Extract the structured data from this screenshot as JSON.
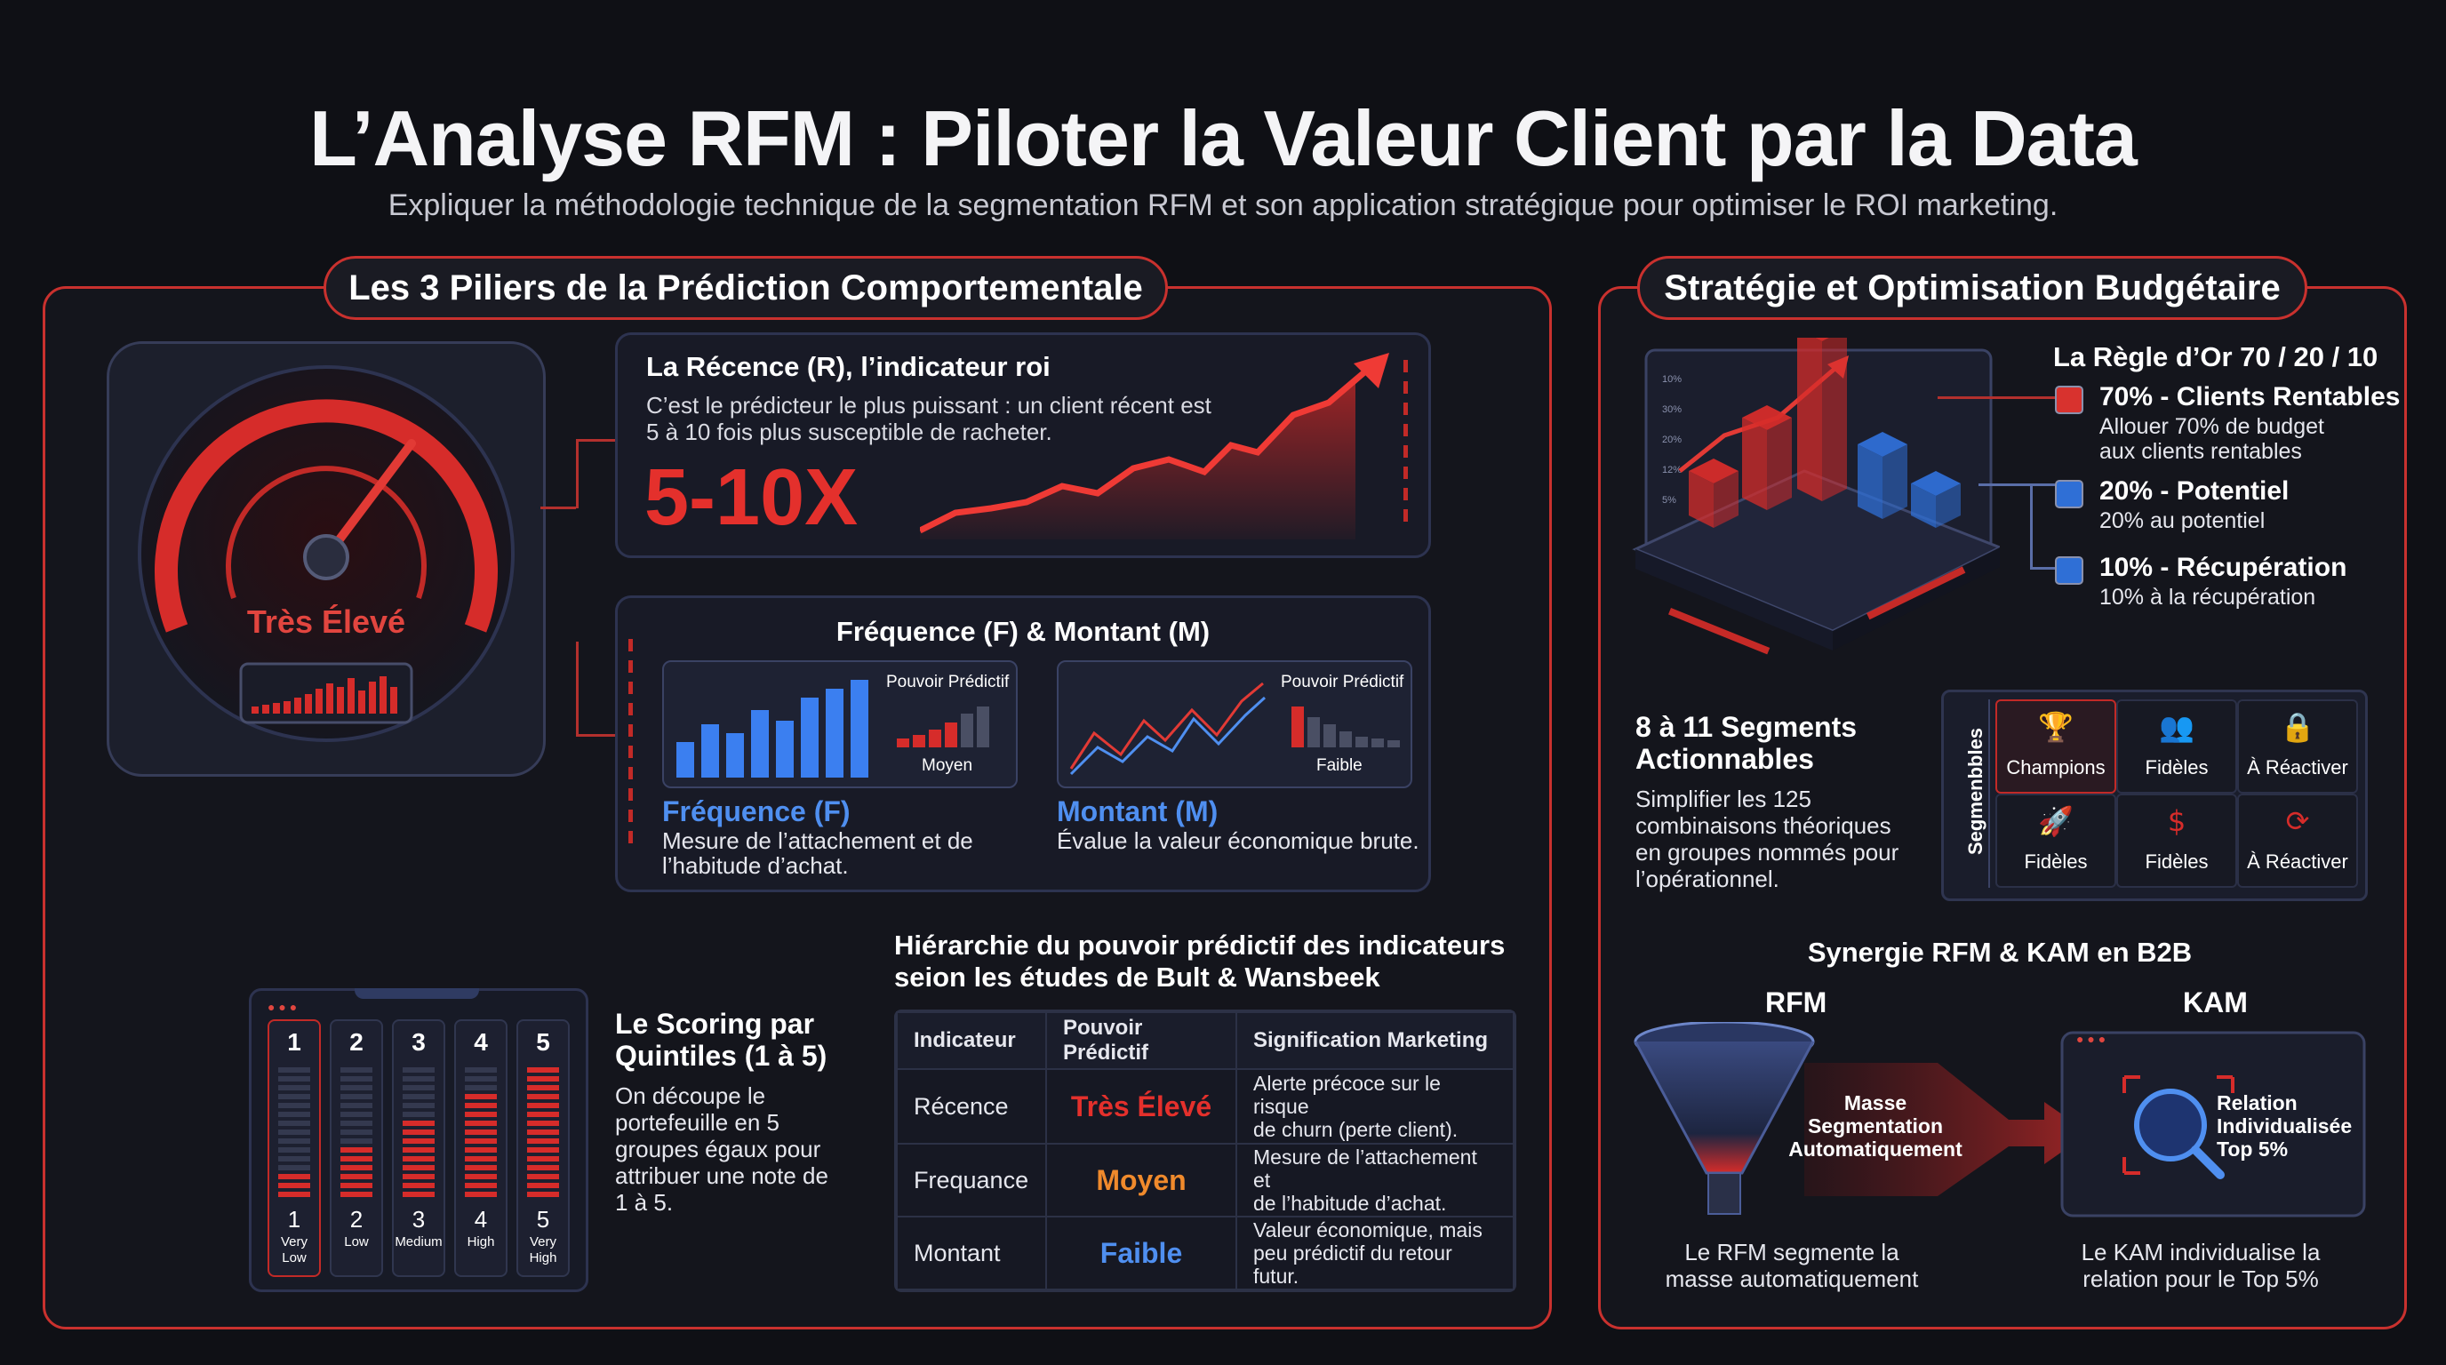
{
  "header": {
    "title": "L’Analyse RFM : Piloter la Valeur Client par la Data",
    "subtitle": "Expliquer la méthodologie technique de la segmentation RFM et son application stratégique pour optimiser le ROI marketing."
  },
  "left": {
    "section_title": "Les 3 Piliers de la Prédiction Comportementale",
    "gauge_label": "Très Élevé",
    "recency": {
      "title": "La Récence (R), l’indicateur roi",
      "text_line1": "C’est le prédicteur le plus puissant : un client récent est",
      "text_line2": "5 à 10 fois plus susceptible de racheter.",
      "big_value": "5-10X"
    },
    "fm": {
      "title": "Fréquence (F) & Montant (M)",
      "f_badge": "Pouvoir Prédictif",
      "f_badge_value": "Moyen",
      "m_badge": "Pouvoir Prédictif",
      "m_badge_value": "Faible",
      "f_title": "Fréquence (F)",
      "f_desc_line1": "Mesure de l’attachement et de",
      "f_desc_line2": "l’habitude d’achat.",
      "m_title": "Montant (M)",
      "m_desc": "Évalue la valeur économique brute."
    },
    "scoring": {
      "title_line1": "Le Scoring par",
      "title_line2": "Quintiles (1 à 5)",
      "desc_lines": [
        "On découpe le",
        "portefeuille en 5",
        "groupes égaux pour",
        "attribuer une note de",
        "1 à 5."
      ],
      "columns": [
        {
          "top": "1",
          "num": "1",
          "label_line1": "Very",
          "label_line2": "Low",
          "level": 0.2
        },
        {
          "top": "2",
          "num": "2",
          "label_line1": "Low",
          "label_line2": "",
          "level": 0.4
        },
        {
          "top": "3",
          "num": "3",
          "label_line1": "Medium",
          "label_line2": "",
          "level": 0.6
        },
        {
          "top": "4",
          "num": "4",
          "label_line1": "High",
          "label_line2": "",
          "level": 0.8
        },
        {
          "top": "5",
          "num": "5",
          "label_line1": "Very",
          "label_line2": "High",
          "level": 1.0
        }
      ]
    },
    "hierarchy": {
      "title_line1": "Hiérarchie du pouvoir prédictif des indicateurs",
      "title_line2": "seion les études de Bult & Wansbeek",
      "headers": [
        "Indicateur",
        "Pouvoir Prédictif",
        "Signification Marketing"
      ],
      "rows": [
        {
          "indicator": "Récence",
          "power": "Très Élevé",
          "meaning_line1": "Alerte précoce sur le risque",
          "meaning_line2": "de churn (perte client)."
        },
        {
          "indicator": "Frequance",
          "power": "Moyen",
          "meaning_line1": "Mesure de l’attachement et",
          "meaning_line2": "de l’habitude d’achat."
        },
        {
          "indicator": "Montant",
          "power": "Faible",
          "meaning_line1": "Valeur économique, mais",
          "meaning_line2": "peu prédictif du retour futur."
        }
      ]
    }
  },
  "right": {
    "section_title": "Stratégie et Optimisation Budgétaire",
    "rule_title": "La Règle d’Or 70 / 20 / 10",
    "chart_ticks": [
      "10%",
      "30%",
      "20%",
      "12%",
      "5%"
    ],
    "rules": [
      {
        "title": "70% - Clients Rentables",
        "line1": "Allouer 70% de budget",
        "line2": "aux clients rentables",
        "color": "#d8322e"
      },
      {
        "title": "20% - Potentiel",
        "line1": "20% au potentiel",
        "line2": "",
        "color": "#2f6fd6"
      },
      {
        "title": "10% - Récupération",
        "line1": "10% à la récupération",
        "line2": "",
        "color": "#2f6fd6"
      }
    ],
    "segments": {
      "title_line1": "8 à 11 Segments",
      "title_line2": "Actionnables",
      "desc_lines": [
        "Simplifier les 125",
        "combinaisons théoriques",
        "en groupes nommés pour",
        "l’opérationnel."
      ],
      "vertical_label": "Segmenbbles",
      "grid": [
        "Champions",
        "Fidèles",
        "À Réactiver",
        "Fidèles",
        "Fidèles",
        "À Réactiver"
      ],
      "icons": [
        "trophy-icon",
        "people-icon",
        "lock-icon",
        "rocket-icon",
        "hand-dollar-icon",
        "refresh-icon"
      ]
    },
    "synergy": {
      "title": "Synergie RFM & KAM en B2B",
      "rfm_label": "RFM",
      "kam_label": "KAM",
      "funnel_lines": [
        "Masse",
        "Segmentation",
        "Automatiquement"
      ],
      "kam_lines": [
        "Relation",
        "Individualisée",
        "Top 5%"
      ],
      "rfm_caption_line1": "Le RFM segmente la",
      "rfm_caption_line2": "masse automatiquement",
      "kam_caption_line1": "Le KAM individualise la",
      "kam_caption_line2": "relation pour le Top 5%"
    }
  }
}
